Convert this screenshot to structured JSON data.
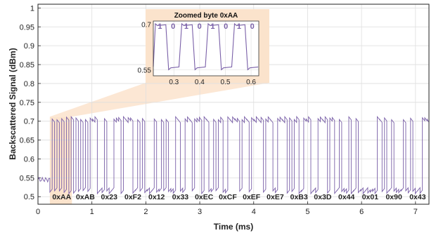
{
  "chart_data": {
    "type": "line",
    "xlabel": "Time (ms)",
    "ylabel": "Backscattered Signal (dBm)",
    "xlim": [
      0,
      7.25
    ],
    "ylim": [
      0.48,
      1.01
    ],
    "xticks": [
      0,
      1,
      2,
      3,
      4,
      5,
      6,
      7
    ],
    "yticks": [
      0.5,
      0.55,
      0.6,
      0.65,
      0.7,
      0.75,
      0.8,
      0.85,
      0.9,
      0.95,
      1
    ],
    "grid": true,
    "series": [
      {
        "color": "#7a60a8",
        "description_values": {
          "high": 0.7,
          "low": 0.52,
          "idle_start": [
            0,
            0.22
          ],
          "idle_level": 0.545
        }
      }
    ],
    "bytes": [
      "0xAA",
      "0xAB",
      "0x23",
      "0xF2",
      "0x12",
      "0x33",
      "0xEC",
      "0xCF",
      "0xEF",
      "0xE7",
      "0xB3",
      "0x3D",
      "0x44",
      "0x01",
      "0x90",
      "0x43"
    ],
    "byte_start_ms": 0.22,
    "byte_duration_ms": 0.44,
    "highlight": {
      "color": "#fbe3cc",
      "x_range": [
        0.22,
        0.63
      ]
    },
    "inset": {
      "title": "Zoomed byte 0xAA",
      "xlim": [
        0.22,
        0.63
      ],
      "ylim": [
        0.53,
        0.71
      ],
      "xticks": [
        0.3,
        0.4,
        0.5,
        0.6
      ],
      "yticks": [
        0.55,
        0.7
      ],
      "bits": [
        "1",
        "0",
        "1",
        "0",
        "1",
        "0",
        "1",
        "0"
      ]
    }
  }
}
